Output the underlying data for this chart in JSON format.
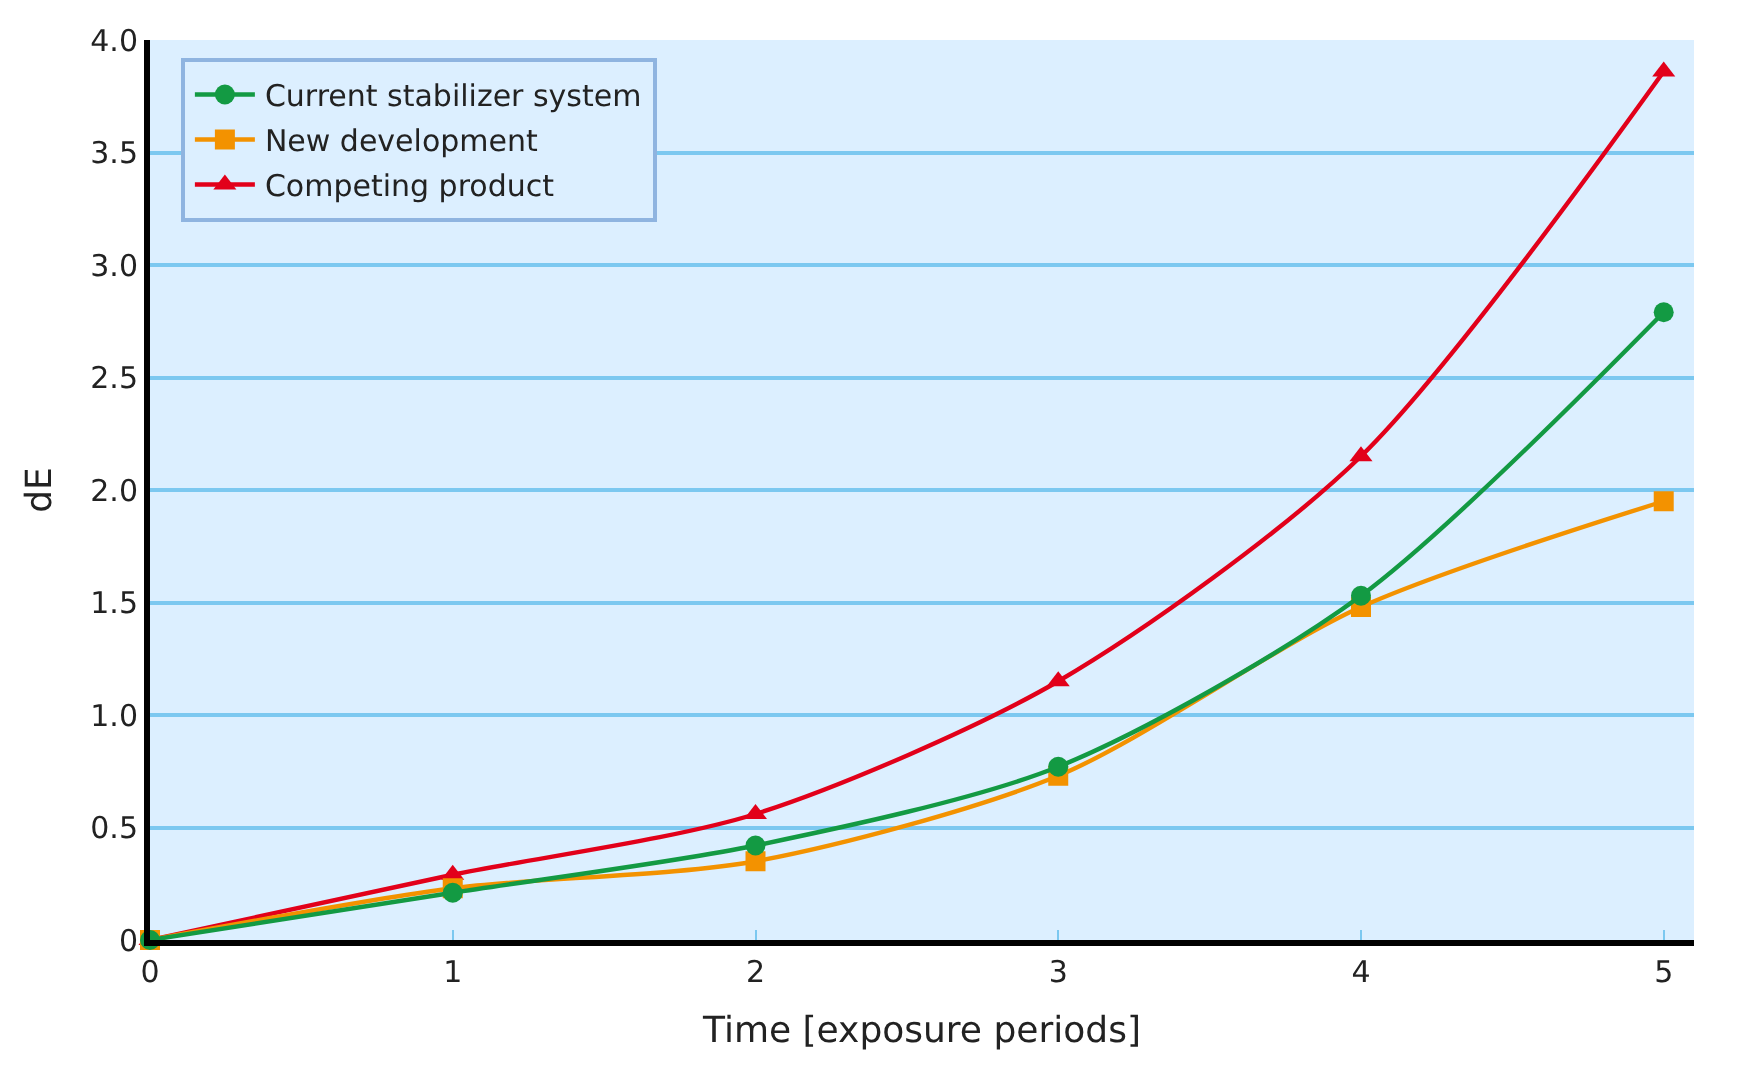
{
  "chart_data": {
    "type": "line",
    "xlabel": "Time [exposure periods]",
    "ylabel": "dE",
    "x": [
      0,
      1,
      2,
      3,
      4,
      5
    ],
    "series": [
      {
        "name": "Current stabilizer system",
        "color": "#139a43",
        "marker": "circle",
        "values": [
          0,
          0.21,
          0.42,
          0.77,
          1.53,
          2.79
        ]
      },
      {
        "name": "New development",
        "color": "#f39200",
        "marker": "square",
        "values": [
          0,
          0.23,
          0.35,
          0.73,
          1.48,
          1.95
        ]
      },
      {
        "name": "Competing product",
        "color": "#e2001a",
        "marker": "triangle",
        "values": [
          0,
          0.29,
          0.56,
          1.15,
          2.15,
          3.86
        ]
      }
    ],
    "xlim": [
      0,
      5.1
    ],
    "xticks": [
      0,
      1,
      2,
      3,
      4,
      5
    ],
    "ylim": [
      0,
      4.0
    ],
    "yticks": [
      0,
      {
        "value": 0.5,
        "label": "0.5"
      },
      {
        "value": 1,
        "label": "1.0"
      },
      {
        "value": 1.5,
        "label": "1.5"
      },
      {
        "value": 2,
        "label": "2.0"
      },
      {
        "value": 2.5,
        "label": "2.5"
      },
      {
        "value": 3,
        "label": "3.0"
      },
      {
        "value": 3.5,
        "label": "3.5"
      },
      {
        "value": 4,
        "label": "4.0"
      }
    ],
    "grid": "y",
    "legend": "top left",
    "line_style": "solid"
  }
}
